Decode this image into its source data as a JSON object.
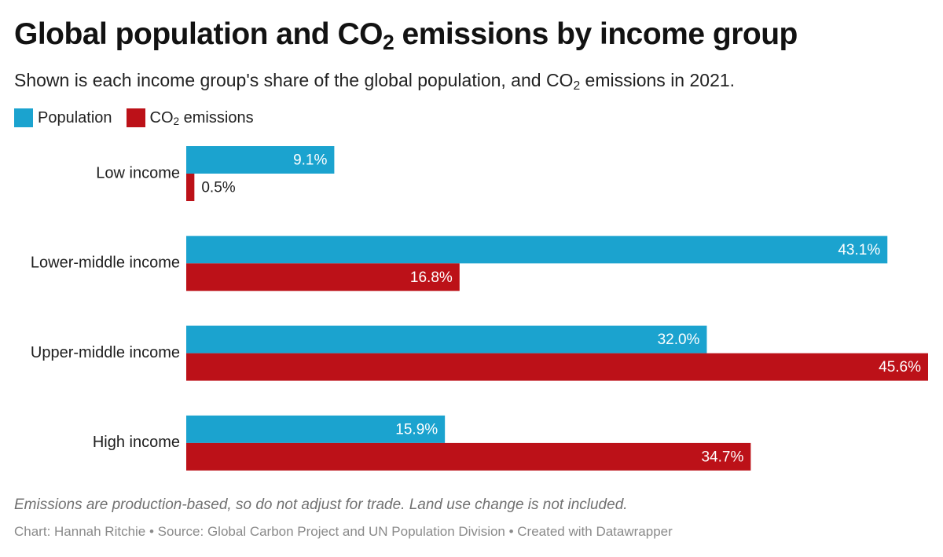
{
  "header": {
    "title_pre": "Global population and CO",
    "title_sub": "2",
    "title_post": " emissions by income group",
    "subtitle_pre": "Shown is each income group's share of the global population, and CO",
    "subtitle_sub": "2",
    "subtitle_post": " emissions in 2021."
  },
  "legend": {
    "population_label": "Population",
    "co2_label_pre": "CO",
    "co2_label_sub": "2",
    "co2_label_post": " emissions"
  },
  "colors": {
    "population": "#1ba3cf",
    "co2": "#bc1118"
  },
  "chart_data": {
    "type": "bar",
    "orientation": "horizontal",
    "categories": [
      "Low income",
      "Lower-middle income",
      "Upper-middle income",
      "High income"
    ],
    "series": [
      {
        "name": "Population",
        "values": [
          9.1,
          43.1,
          32.0,
          15.9
        ],
        "labels": [
          "9.1%",
          "43.1%",
          "32.0%",
          "15.9%"
        ]
      },
      {
        "name": "CO₂ emissions",
        "values": [
          0.5,
          16.8,
          45.6,
          34.7
        ],
        "labels": [
          "0.5%",
          "16.8%",
          "45.6%",
          "34.7%"
        ]
      }
    ],
    "xlim": [
      0,
      45.6
    ],
    "grid": false,
    "legend_position": "top-left"
  },
  "footer": {
    "note": "Emissions are production-based, so do not adjust for trade. Land use change is not included.",
    "credit": "Chart: Hannah Ritchie • Source: Global Carbon Project and UN Population Division • Created with Datawrapper"
  }
}
